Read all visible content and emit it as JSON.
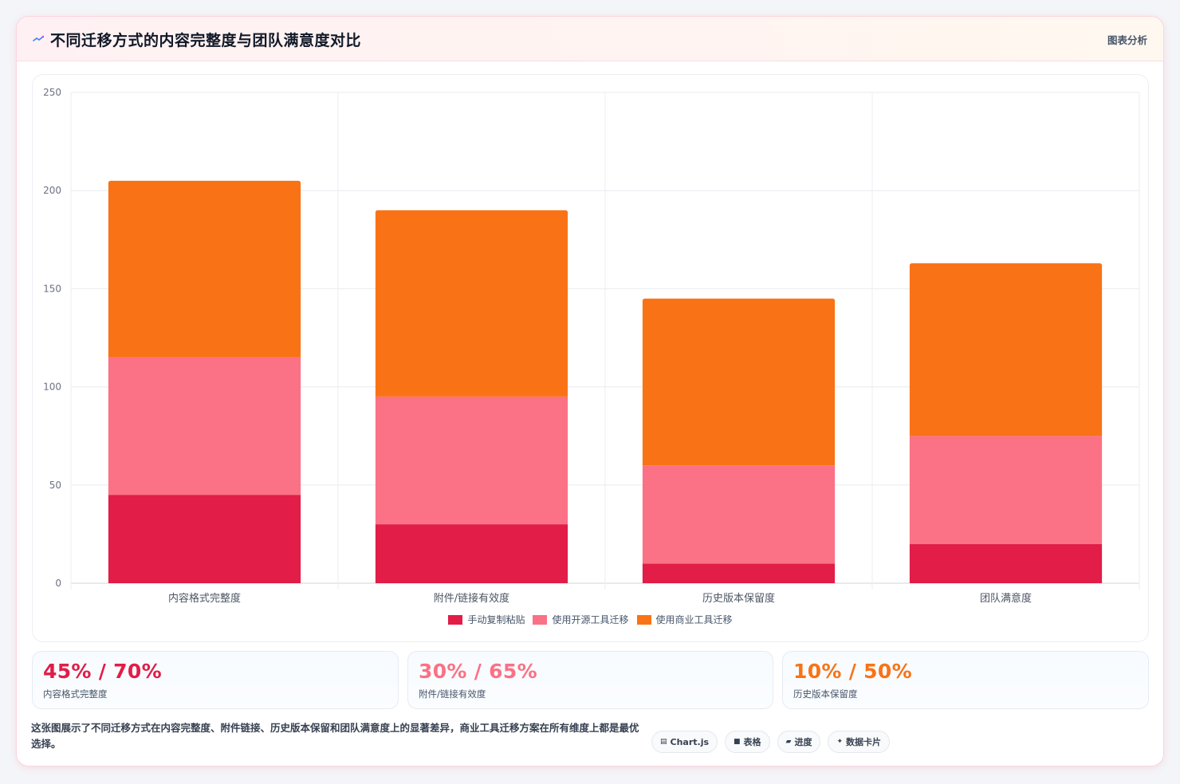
{
  "header": {
    "title": "不同迁移方式的内容完整度与团队满意度对比",
    "tag": "图表分析",
    "icon": "chart-spark-icon"
  },
  "chart_data": {
    "type": "bar",
    "stacked": true,
    "categories": [
      "内容格式完整度",
      "附件/链接有效度",
      "历史版本保留度",
      "团队满意度"
    ],
    "series": [
      {
        "name": "手动复制粘贴",
        "color": "#e11d48",
        "values": [
          45,
          30,
          10,
          20
        ]
      },
      {
        "name": "使用开源工具迁移",
        "color": "#fb7185",
        "values": [
          70,
          65,
          50,
          55
        ]
      },
      {
        "name": "使用商业工具迁移",
        "color": "#f97316",
        "values": [
          90,
          95,
          85,
          88
        ]
      }
    ],
    "ylim": [
      0,
      250
    ],
    "yticks": [
      0,
      50,
      100,
      150,
      200,
      250
    ],
    "grid": true,
    "legend_position": "bottom"
  },
  "stats": [
    {
      "value": "45% / 70%",
      "label": "内容格式完整度",
      "color": "#e11d48"
    },
    {
      "value": "30% / 65%",
      "label": "附件/链接有效度",
      "color": "#fb7185"
    },
    {
      "value": "10% / 50%",
      "label": "历史版本保留度",
      "color": "#f97316"
    }
  ],
  "footer": {
    "description": "这张图展示了不同迁移方式在内容完整度、附件链接、历史版本保留和团队满意度上的显著差异，商业工具迁移方案在所有维度上都是最优选择。",
    "chips": [
      {
        "icon": "chart-icon",
        "glyph": "▤",
        "label": "Chart.js"
      },
      {
        "icon": "table-icon",
        "glyph": "■",
        "label": "表格"
      },
      {
        "icon": "progress-icon",
        "glyph": "▰",
        "label": "进度"
      },
      {
        "icon": "card-icon",
        "glyph": "✦",
        "label": "数据卡片"
      }
    ]
  }
}
